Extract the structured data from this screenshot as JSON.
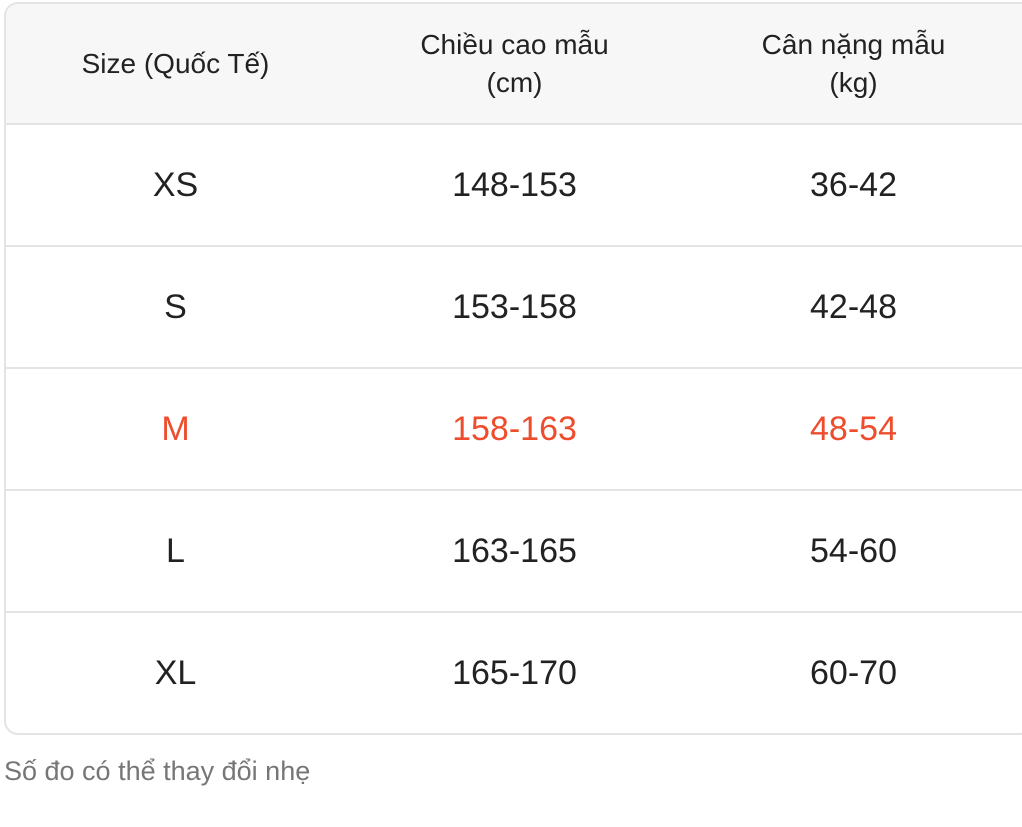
{
  "table": {
    "headers": [
      "Size (Quốc Tế)",
      "Chiều cao mẫu\n(cm)",
      "Cân nặng mẫu\n(kg)"
    ],
    "rows": [
      [
        "XS",
        "148-153",
        "36-42"
      ],
      [
        "S",
        "153-158",
        "42-48"
      ],
      [
        "M",
        "158-163",
        "48-54"
      ],
      [
        "L",
        "163-165",
        "54-60"
      ],
      [
        "XL",
        "165-170",
        "60-70"
      ]
    ],
    "highlighted_row": 2,
    "highlight_color": "#ee4d2d"
  },
  "note": "Số đo có thể thay đổi nhẹ"
}
